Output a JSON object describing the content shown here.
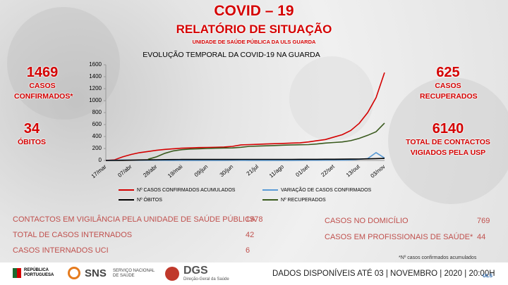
{
  "header": {
    "title": "COVID – 19",
    "subtitle": "RELATÓRIO DE SITUAÇÃO",
    "unit": "UNIDADE DE SAÚDE PÚBLICA DA ULS GUARDA"
  },
  "stats": {
    "confirmed": {
      "value": 1469,
      "label": "CASOS CONFIRMADOS*"
    },
    "deaths": {
      "value": 34,
      "label": "ÓBITOS"
    },
    "recovered": {
      "value": 625,
      "label": "CASOS RECUPERADOS"
    },
    "contacts": {
      "value": 6140,
      "label": "TOTAL DE CONTACTOS VIGIADOS PELA USP"
    }
  },
  "chart_data": {
    "type": "line",
    "title": "EVOLUÇÃO TEMPORAL DA COVID-19 NA GUARDA",
    "categories": [
      "17/mar",
      null,
      null,
      "07/abr",
      null,
      null,
      "28/abr",
      null,
      null,
      "19/mai",
      null,
      null,
      "09/jun",
      null,
      null,
      "30/jun",
      null,
      null,
      "21/jul",
      null,
      null,
      "11/ago",
      null,
      null,
      "01/set",
      null,
      null,
      "22/set",
      null,
      null,
      "13/out",
      null,
      null,
      "03/nov"
    ],
    "series": [
      {
        "name": "Nº CASOS CONFIRMADOS ACUMULADOS",
        "color": "#d40000",
        "values": [
          0,
          10,
          60,
          100,
          130,
          150,
          170,
          185,
          195,
          205,
          210,
          215,
          218,
          220,
          225,
          235,
          260,
          265,
          270,
          275,
          280,
          285,
          290,
          295,
          310,
          330,
          350,
          390,
          430,
          500,
          620,
          800,
          1050,
          1469
        ]
      },
      {
        "name": "VARIAÇÃO DE CASOS CONFIRMADOS",
        "color": "#5b9bd5",
        "values": [
          0,
          3,
          8,
          6,
          4,
          3,
          2,
          2,
          1,
          1,
          1,
          1,
          0,
          1,
          1,
          2,
          3,
          1,
          1,
          1,
          1,
          1,
          1,
          2,
          3,
          3,
          5,
          6,
          6,
          10,
          20,
          30,
          130,
          40
        ]
      },
      {
        "name": "Nº ÓBITOS",
        "color": "#000000",
        "values": [
          0,
          0,
          2,
          5,
          8,
          10,
          12,
          14,
          15,
          16,
          16,
          17,
          17,
          17,
          17,
          17,
          18,
          18,
          18,
          18,
          18,
          18,
          18,
          19,
          19,
          19,
          20,
          20,
          21,
          22,
          24,
          27,
          30,
          34
        ]
      },
      {
        "name": "Nº RECUPERADOS",
        "color": "#3a5a1e",
        "values": [
          null,
          null,
          null,
          null,
          null,
          20,
          60,
          120,
          160,
          180,
          190,
          195,
          200,
          205,
          208,
          210,
          220,
          235,
          240,
          245,
          250,
          255,
          260,
          262,
          265,
          275,
          290,
          300,
          310,
          330,
          370,
          420,
          480,
          625
        ]
      }
    ],
    "ylim": [
      0,
      1600
    ],
    "yticks": [
      0,
      200,
      400,
      600,
      800,
      1000,
      1200,
      1400,
      1600
    ]
  },
  "table": {
    "left": [
      [
        "CONTACTOS EM VIGILÂNCIA PELA UNIDADE DE SAÚDE PÚBLICA",
        1578
      ],
      [
        "TOTAL DE CASOS INTERNADOS",
        42
      ],
      [
        "CASOS INTERNADOS UCI",
        6
      ]
    ],
    "right": [
      [
        "CASOS NO DOMICÍLIO",
        769
      ],
      [
        "CASOS EM PROFISSIONAIS DE SAÚDE*",
        44
      ]
    ]
  },
  "footnote": "*Nº casos confirmados acumulados",
  "footer": {
    "date": "DADOS DISPONÍVEIS ATÉ 03 | NOVEMBRO | 2020 | 20:00H",
    "logos": [
      "REPÚBLICA PORTUGUESA",
      "SNS",
      "SERVIÇO NACIONAL DE SAÚDE",
      "DGS",
      "Direção-Geral da Saúde",
      "ULS"
    ]
  }
}
